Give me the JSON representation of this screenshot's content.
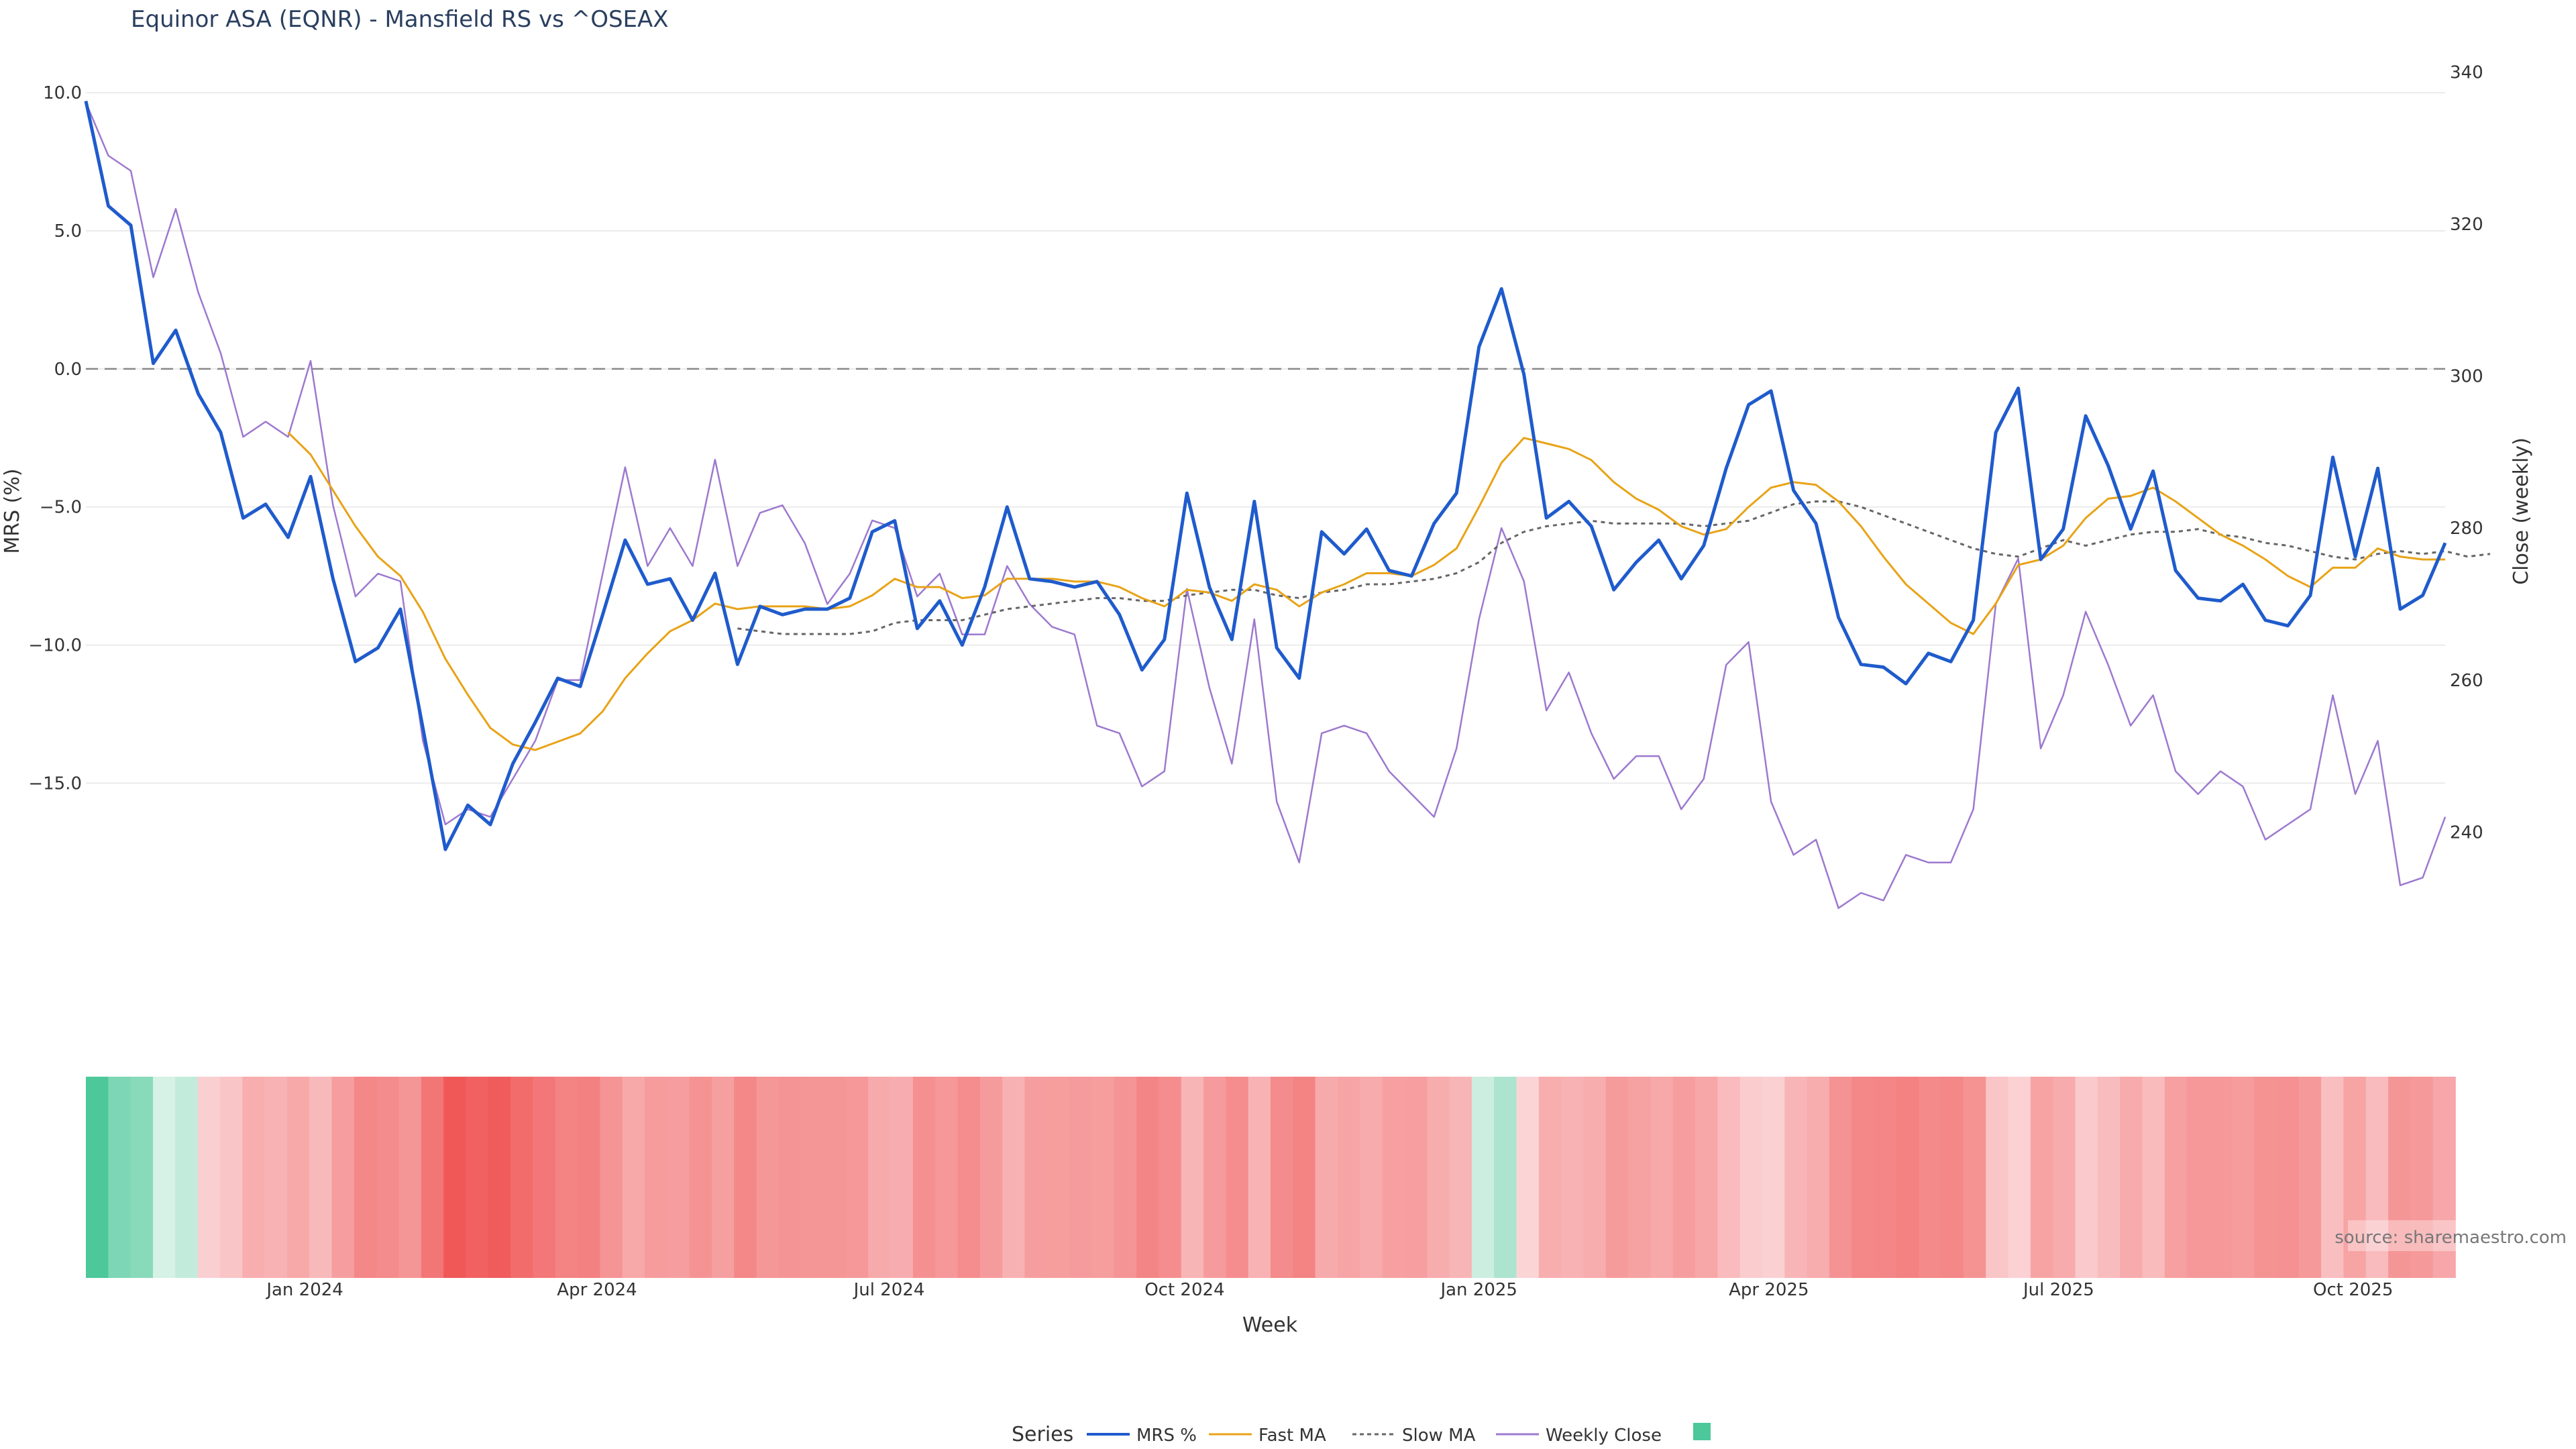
{
  "chart_data": {
    "type": "line",
    "title": "Equinor ASA (EQNR) - Mansfield RS vs ^OSEAX",
    "xlabel": "Week",
    "ylabel": "MRS (%)",
    "y2label": "Close (weekly)",
    "ylim": [
      -19.8,
      10.2
    ],
    "y2lim": [
      229,
      338
    ],
    "y_ticks": [
      10.0,
      5.0,
      0.0,
      -5.0,
      -10.0,
      -15.0
    ],
    "y_tick_labels": [
      "10.0",
      "5.0",
      "0.0",
      "−5.0",
      "−10.0",
      "−15.0"
    ],
    "y2_ticks": [
      340,
      320,
      300,
      280,
      260,
      240
    ],
    "x_ticks": [
      {
        "index": 9.75,
        "label": "Jan 2024"
      },
      {
        "index": 22.75,
        "label": "Apr 2024"
      },
      {
        "index": 35.75,
        "label": "Jul 2024"
      },
      {
        "index": 48.9,
        "label": "Oct 2024"
      },
      {
        "index": 62.0,
        "label": "Jan 2025"
      },
      {
        "index": 74.9,
        "label": "Apr 2025"
      },
      {
        "index": 87.8,
        "label": "Jul 2025"
      },
      {
        "index": 100.9,
        "label": "Oct 2025"
      }
    ],
    "reference_line": 0,
    "legend_position": "bottom-center",
    "legend_title": "Series",
    "source_text": "source: sharemaestro.com",
    "series": [
      {
        "name": "MRS %",
        "color": "#1f5bcc",
        "axis": "left",
        "style": "solid",
        "width": 5,
        "values": [
          9.7,
          5.9,
          5.2,
          0.2,
          1.4,
          -0.9,
          -2.3,
          -5.4,
          -4.9,
          -6.1,
          -3.9,
          -7.6,
          -10.6,
          -10.1,
          -8.7,
          -13.0,
          -17.4,
          -15.8,
          -16.5,
          -14.3,
          -12.8,
          -11.2,
          -11.5,
          -8.9,
          -6.2,
          -7.8,
          -7.6,
          -9.1,
          -7.4,
          -10.7,
          -8.6,
          -8.9,
          -8.7,
          -8.7,
          -8.3,
          -5.9,
          -5.5,
          -9.4,
          -8.4,
          -10.0,
          -7.9,
          -5.0,
          -7.6,
          -7.7,
          -7.9,
          -7.7,
          -8.9,
          -10.9,
          -9.8,
          -4.5,
          -7.9,
          -9.8,
          -4.8,
          -10.1,
          -11.2,
          -5.9,
          -6.7,
          -5.8,
          -7.3,
          -7.5,
          -5.6,
          -4.5,
          0.8,
          2.9,
          -0.2,
          -5.4,
          -4.8,
          -5.7,
          -8.0,
          -7.0,
          -6.2,
          -7.6,
          -6.4,
          -3.6,
          -1.3,
          -0.8,
          -4.4,
          -5.6,
          -9.0,
          -10.7,
          -10.8,
          -11.4,
          -10.3,
          -10.6,
          -9.1,
          -2.3,
          -0.7,
          -6.9,
          -5.8,
          -1.7,
          -3.5,
          -5.8,
          -3.7,
          -7.3,
          -8.3,
          -8.4,
          -7.8,
          -9.1,
          -9.3,
          -8.2,
          -3.2,
          -6.8,
          -3.6,
          -8.7,
          -8.2,
          -6.3
        ]
      },
      {
        "name": "Fast MA",
        "color": "#e8a317",
        "axis": "left",
        "style": "solid",
        "width": 3,
        "start": 9,
        "values": [
          -2.3,
          -3.1,
          -4.4,
          -5.7,
          -6.8,
          -7.5,
          -8.8,
          -10.5,
          -11.8,
          -13.0,
          -13.6,
          -13.8,
          -13.5,
          -13.2,
          -12.4,
          -11.2,
          -10.3,
          -9.5,
          -9.1,
          -8.5,
          -8.7,
          -8.6,
          -8.6,
          -8.6,
          -8.7,
          -8.6,
          -8.2,
          -7.6,
          -7.9,
          -7.9,
          -8.3,
          -8.2,
          -7.6,
          -7.6,
          -7.6,
          -7.7,
          -7.7,
          -7.9,
          -8.3,
          -8.6,
          -8.0,
          -8.1,
          -8.4,
          -7.8,
          -8.0,
          -8.6,
          -8.1,
          -7.8,
          -7.4,
          -7.4,
          -7.5,
          -7.1,
          -6.5,
          -5.0,
          -3.4,
          -2.5,
          -2.7,
          -2.9,
          -3.3,
          -4.1,
          -4.7,
          -5.1,
          -5.7,
          -6.0,
          -5.8,
          -5.0,
          -4.3,
          -4.1,
          -4.2,
          -4.8,
          -5.7,
          -6.8,
          -7.8,
          -8.5,
          -9.2,
          -9.6,
          -8.5,
          -7.1,
          -6.9,
          -6.4,
          -5.4,
          -4.7,
          -4.6,
          -4.3,
          -4.8,
          -5.4,
          -6.0,
          -6.4,
          -6.9,
          -7.5,
          -7.9,
          -7.2,
          -7.2,
          -6.5,
          -6.8,
          -6.9,
          -6.9
        ]
      },
      {
        "name": "Slow MA",
        "color": "#666666",
        "axis": "left",
        "style": "dotted",
        "width": 3,
        "start": 29,
        "values": [
          -9.4,
          -9.5,
          -9.6,
          -9.6,
          -9.6,
          -9.6,
          -9.5,
          -9.2,
          -9.1,
          -9.1,
          -9.1,
          -8.9,
          -8.7,
          -8.6,
          -8.5,
          -8.4,
          -8.3,
          -8.3,
          -8.4,
          -8.4,
          -8.2,
          -8.1,
          -8.0,
          -8.0,
          -8.2,
          -8.3,
          -8.1,
          -8.0,
          -7.8,
          -7.8,
          -7.7,
          -7.6,
          -7.4,
          -7.0,
          -6.3,
          -5.9,
          -5.7,
          -5.6,
          -5.5,
          -5.6,
          -5.6,
          -5.6,
          -5.6,
          -5.7,
          -5.6,
          -5.5,
          -5.2,
          -4.9,
          -4.8,
          -4.8,
          -5.0,
          -5.3,
          -5.6,
          -5.9,
          -6.2,
          -6.5,
          -6.7,
          -6.8,
          -6.5,
          -6.2,
          -6.4,
          -6.2,
          -6.0,
          -5.9,
          -5.9,
          -5.8,
          -6.0,
          -6.1,
          -6.3,
          -6.4,
          -6.6,
          -6.8,
          -6.9,
          -6.7,
          -6.6,
          -6.7,
          -6.6,
          -6.8,
          -6.7
        ]
      },
      {
        "name": "Weekly Close",
        "color": "#9d79cf",
        "axis": "right",
        "style": "solid",
        "width": 2.5,
        "values": [
          336,
          329,
          327,
          313,
          322,
          311,
          303,
          292,
          294,
          292,
          302,
          283,
          271,
          274,
          273,
          252,
          241,
          243,
          242,
          247,
          252,
          260,
          260,
          274,
          288,
          275,
          280,
          275,
          289,
          275,
          282,
          283,
          278,
          270,
          274,
          281,
          280,
          271,
          274,
          266,
          266,
          275,
          270,
          267,
          266,
          254,
          253,
          246,
          248,
          272,
          259,
          249,
          268,
          244,
          236,
          253,
          254,
          253,
          248,
          245,
          242,
          251,
          268,
          280,
          273,
          256,
          261,
          253,
          247,
          250,
          250,
          243,
          247,
          262,
          265,
          244,
          237,
          239,
          230,
          232,
          231,
          237,
          236,
          236,
          243,
          270,
          276,
          251,
          258,
          269,
          262,
          254,
          258,
          248,
          245,
          248,
          246,
          239,
          241,
          243,
          258,
          245,
          252,
          233,
          234,
          242
        ]
      },
      {
        "name": "",
        "color": "#4cc89a",
        "type": "heatmap-strip",
        "axis": "bottom-panel",
        "values": [
          9.7,
          5.9,
          5.2,
          0.2,
          1.4,
          -0.9,
          -2.3,
          -5.4,
          -4.9,
          -6.1,
          -3.9,
          -7.6,
          -10.6,
          -10.1,
          -8.7,
          -13.0,
          -17.4,
          -15.8,
          -16.5,
          -14.3,
          -12.8,
          -11.2,
          -11.5,
          -8.9,
          -6.2,
          -7.8,
          -7.6,
          -9.1,
          -7.4,
          -10.7,
          -8.6,
          -8.9,
          -8.7,
          -8.7,
          -8.3,
          -5.9,
          -5.5,
          -9.4,
          -8.4,
          -10.0,
          -7.9,
          -5.0,
          -7.6,
          -7.7,
          -7.9,
          -7.7,
          -8.9,
          -10.9,
          -9.8,
          -4.5,
          -7.9,
          -9.8,
          -4.8,
          -10.1,
          -11.2,
          -5.9,
          -6.7,
          -5.8,
          -7.3,
          -7.5,
          -5.6,
          -4.5,
          0.8,
          2.9,
          -0.2,
          -5.4,
          -4.8,
          -5.7,
          -8.0,
          -7.0,
          -6.2,
          -7.6,
          -6.4,
          -3.6,
          -1.3,
          -0.8,
          -4.4,
          -5.6,
          -9.0,
          -10.7,
          -10.8,
          -11.4,
          -10.3,
          -10.6,
          -9.1,
          -2.3,
          -0.7,
          -6.9,
          -5.8,
          -1.7,
          -3.5,
          -5.8,
          -3.7,
          -7.3,
          -8.3,
          -8.4,
          -7.8,
          -9.1,
          -9.3,
          -8.2,
          -3.2,
          -6.8,
          -3.6,
          -8.7,
          -8.2,
          -6.3
        ]
      }
    ]
  }
}
